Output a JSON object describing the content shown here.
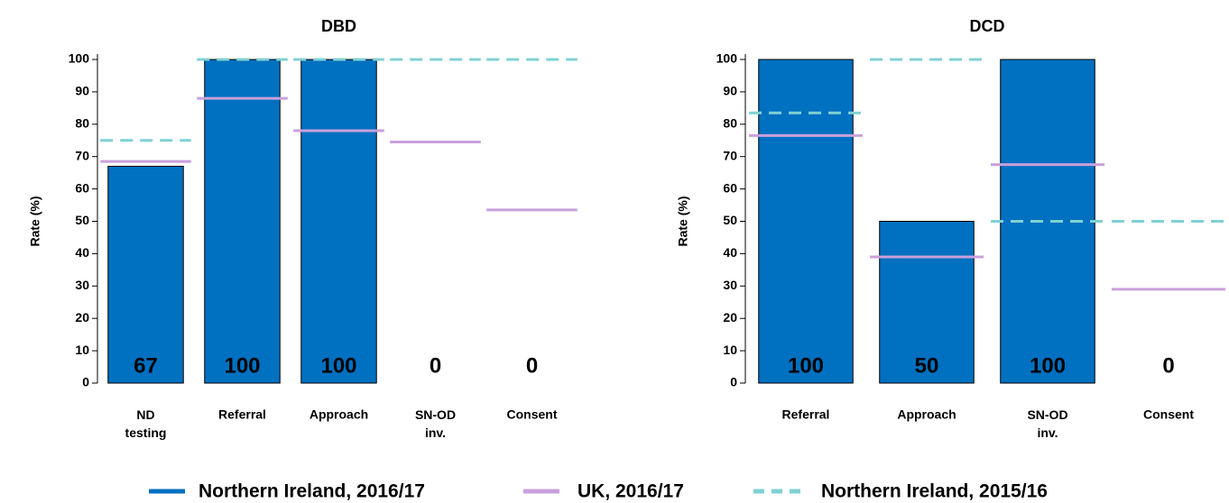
{
  "chart_data": [
    {
      "type": "bar",
      "title": "DBD",
      "y_label": "Rate (%)",
      "categories": [
        "ND testing",
        "Referral",
        "Approach",
        "SN-OD inv.",
        "Consent"
      ],
      "series": [
        {
          "name": "Northern Ireland, 2016/17",
          "color": "#0070c0",
          "style": "bar",
          "values": [
            67,
            100,
            100,
            0,
            0
          ]
        },
        {
          "name": "UK, 2016/17",
          "color": "#c9a0dc",
          "style": "solid",
          "values": [
            68.5,
            88,
            78,
            74.5,
            53.5
          ]
        },
        {
          "name": "Northern Ireland, 2015/16",
          "color": "#7fd1d3",
          "style": "dashed",
          "values": [
            75,
            100,
            100,
            100,
            100
          ]
        }
      ],
      "ylim": [
        0,
        100
      ],
      "yticks": [
        0,
        10,
        20,
        30,
        40,
        50,
        60,
        70,
        80,
        90,
        100
      ]
    },
    {
      "type": "bar",
      "title": "DCD",
      "y_label": "Rate (%)",
      "categories": [
        "Referral",
        "Approach",
        "SN-OD inv.",
        "Consent"
      ],
      "series": [
        {
          "color": "#0070c0",
          "style": "bar",
          "values": [
            100,
            50,
            100,
            0
          ]
        },
        {
          "color": "#c9a0dc",
          "style": "solid",
          "values": [
            76.5,
            39,
            67.5,
            29
          ]
        },
        {
          "color": "#7fd1d3",
          "style": "dashed",
          "values": [
            83.5,
            100,
            50,
            50
          ]
        }
      ],
      "ylim": [
        0,
        100
      ],
      "yticks": [
        0,
        10,
        20,
        30,
        40,
        50,
        60,
        70,
        80,
        90,
        100
      ]
    }
  ]
}
